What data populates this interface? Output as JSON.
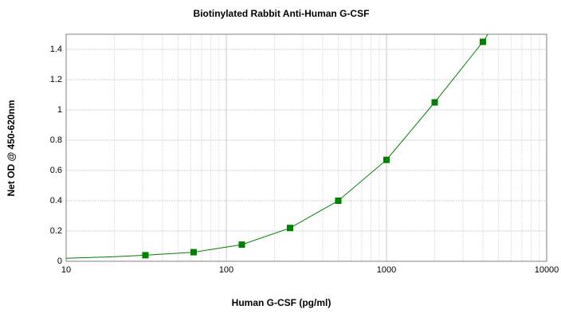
{
  "chart_data": {
    "type": "scatter",
    "title": "Biotinylated Rabbit Anti-Human G-CSF",
    "xlabel": "Human G-CSF (pg/ml)",
    "ylabel": "Net OD @ 450-620nm",
    "xscale": "log",
    "xlim": [
      10,
      10000
    ],
    "xticks": [
      10,
      100,
      1000,
      10000
    ],
    "xminorticks": [
      20,
      30,
      40,
      50,
      60,
      70,
      80,
      90,
      200,
      300,
      400,
      500,
      600,
      700,
      800,
      900,
      2000,
      3000,
      4000,
      5000,
      6000,
      7000,
      8000,
      9000
    ],
    "ylim": [
      0,
      1.5
    ],
    "yticks": [
      0,
      0.2,
      0.4,
      0.6,
      0.8,
      1,
      1.2,
      1.4
    ],
    "grid": true,
    "series": [
      {
        "mode": "markers",
        "color": "#008000",
        "x": [
          31.25,
          62.5,
          125,
          250,
          500,
          1000,
          2000,
          4000
        ],
        "values": [
          0.04,
          0.06,
          0.11,
          0.22,
          0.4,
          0.67,
          1.05,
          1.45
        ]
      },
      {
        "mode": "line",
        "color": "#008000",
        "x": [
          10,
          20,
          31.25,
          62.5,
          125,
          250,
          500,
          1000,
          2000,
          4000,
          4300
        ],
        "values": [
          0.02,
          0.03,
          0.04,
          0.06,
          0.11,
          0.22,
          0.4,
          0.67,
          1.05,
          1.45,
          1.5
        ]
      }
    ]
  }
}
